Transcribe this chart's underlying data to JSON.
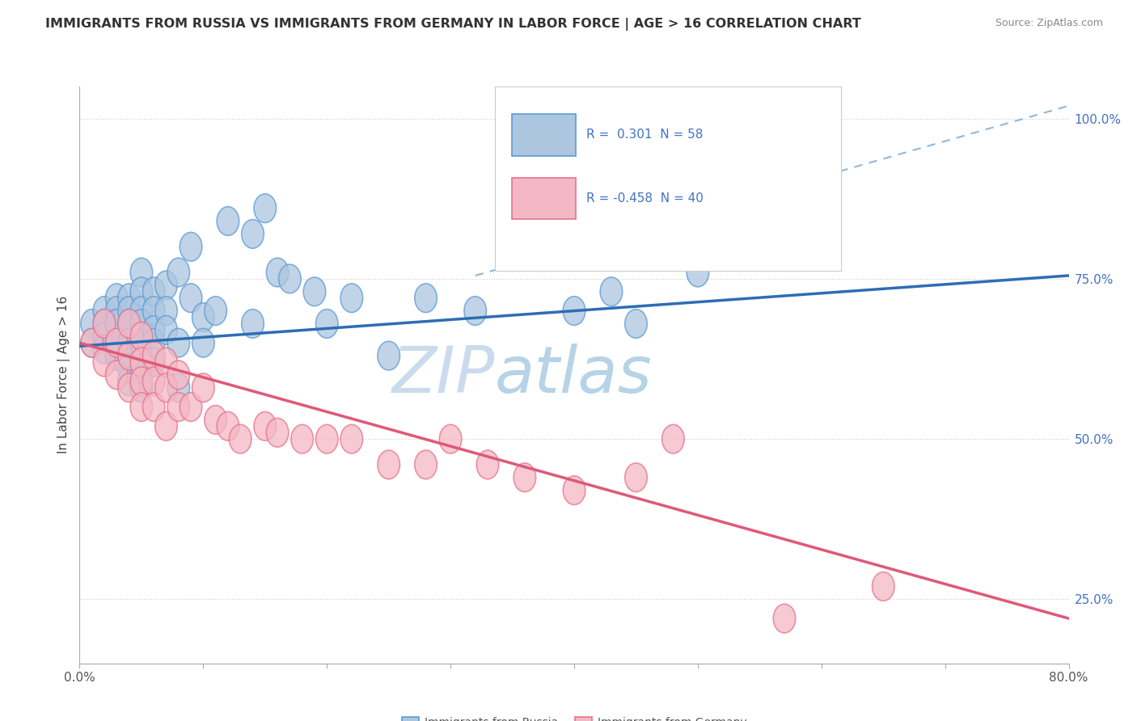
{
  "title": "IMMIGRANTS FROM RUSSIA VS IMMIGRANTS FROM GERMANY IN LABOR FORCE | AGE > 16 CORRELATION CHART",
  "source": "Source: ZipAtlas.com",
  "ylabel": "In Labor Force | Age > 16",
  "x_min": 0.0,
  "x_max": 0.8,
  "y_min": 0.15,
  "y_max": 1.05,
  "y_ticks": [
    0.25,
    0.5,
    0.75,
    1.0
  ],
  "y_tick_labels": [
    "25.0%",
    "50.0%",
    "75.0%",
    "100.0%"
  ],
  "russia_color": "#adc6e0",
  "russia_edge_color": "#5b9bd5",
  "germany_color": "#f4b8c5",
  "germany_edge_color": "#e8728a",
  "russia_line_color": "#2e6db4",
  "germany_line_color": "#e05878",
  "dashed_line_color": "#90b8d8",
  "watermark_color": "#c5d8ed",
  "russia_scatter_x": [
    0.01,
    0.01,
    0.02,
    0.02,
    0.02,
    0.02,
    0.03,
    0.03,
    0.03,
    0.03,
    0.03,
    0.04,
    0.04,
    0.04,
    0.04,
    0.04,
    0.04,
    0.04,
    0.05,
    0.05,
    0.05,
    0.05,
    0.05,
    0.05,
    0.05,
    0.05,
    0.06,
    0.06,
    0.06,
    0.06,
    0.06,
    0.07,
    0.07,
    0.07,
    0.08,
    0.08,
    0.08,
    0.09,
    0.09,
    0.1,
    0.1,
    0.11,
    0.12,
    0.14,
    0.14,
    0.15,
    0.16,
    0.17,
    0.19,
    0.2,
    0.22,
    0.25,
    0.28,
    0.32,
    0.4,
    0.43,
    0.45,
    0.5
  ],
  "russia_scatter_y": [
    0.68,
    0.65,
    0.7,
    0.68,
    0.66,
    0.64,
    0.72,
    0.7,
    0.68,
    0.65,
    0.63,
    0.72,
    0.7,
    0.68,
    0.65,
    0.63,
    0.61,
    0.59,
    0.76,
    0.73,
    0.7,
    0.68,
    0.65,
    0.63,
    0.61,
    0.58,
    0.73,
    0.7,
    0.67,
    0.65,
    0.62,
    0.74,
    0.7,
    0.67,
    0.76,
    0.65,
    0.58,
    0.8,
    0.72,
    0.69,
    0.65,
    0.7,
    0.84,
    0.82,
    0.68,
    0.86,
    0.76,
    0.75,
    0.73,
    0.68,
    0.72,
    0.63,
    0.72,
    0.7,
    0.7,
    0.73,
    0.68,
    0.76
  ],
  "germany_scatter_x": [
    0.01,
    0.02,
    0.02,
    0.03,
    0.03,
    0.04,
    0.04,
    0.04,
    0.05,
    0.05,
    0.05,
    0.05,
    0.06,
    0.06,
    0.06,
    0.07,
    0.07,
    0.07,
    0.08,
    0.08,
    0.09,
    0.1,
    0.11,
    0.12,
    0.13,
    0.15,
    0.16,
    0.18,
    0.2,
    0.22,
    0.25,
    0.28,
    0.3,
    0.33,
    0.36,
    0.4,
    0.45,
    0.48,
    0.57,
    0.65
  ],
  "germany_scatter_y": [
    0.65,
    0.68,
    0.62,
    0.65,
    0.6,
    0.68,
    0.63,
    0.58,
    0.66,
    0.62,
    0.59,
    0.55,
    0.63,
    0.59,
    0.55,
    0.62,
    0.58,
    0.52,
    0.6,
    0.55,
    0.55,
    0.58,
    0.53,
    0.52,
    0.5,
    0.52,
    0.51,
    0.5,
    0.5,
    0.5,
    0.46,
    0.46,
    0.5,
    0.46,
    0.44,
    0.42,
    0.44,
    0.5,
    0.22,
    0.27
  ],
  "russia_trend_x": [
    0.0,
    0.8
  ],
  "russia_trend_y": [
    0.645,
    0.755
  ],
  "germany_trend_x": [
    0.0,
    0.8
  ],
  "germany_trend_y": [
    0.65,
    0.22
  ],
  "dashed_trend_x": [
    0.32,
    0.8
  ],
  "dashed_trend_y": [
    0.755,
    1.02
  ],
  "legend_entries": [
    {
      "label": "R =  0.301  N = 58",
      "color": "#adc6e0",
      "edge_color": "#5b9bd5"
    },
    {
      "label": "R = -0.458  N = 40",
      "color": "#f4b8c5",
      "edge_color": "#e8728a"
    }
  ],
  "bottom_legend": [
    {
      "label": "Immigrants from Russia",
      "color": "#adc6e0",
      "edge_color": "#5b9bd5"
    },
    {
      "label": "Immigrants from Germany",
      "color": "#f4b8c5",
      "edge_color": "#e8728a"
    }
  ]
}
